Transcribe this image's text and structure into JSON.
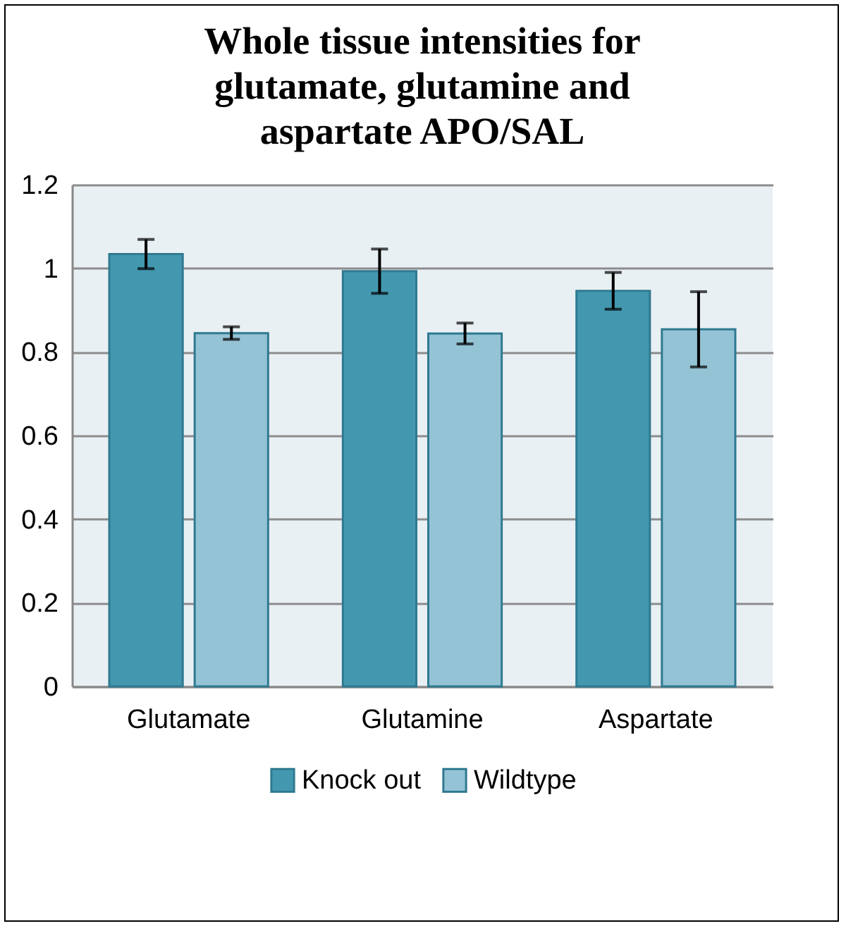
{
  "chart_data": {
    "type": "bar",
    "title": "Whole tissue intensities for glutamate, glutamine and aspartate APO/SAL",
    "categories": [
      "Glutamate",
      "Glutamine",
      "Aspartate"
    ],
    "series": [
      {
        "name": "Knock out",
        "color": "#4398b0",
        "values": [
          1.034,
          0.993,
          0.946
        ],
        "errors": [
          0.035,
          0.053,
          0.044
        ]
      },
      {
        "name": "Wildtype",
        "color": "#94c3d5",
        "values": [
          0.845,
          0.844,
          0.854
        ],
        "errors": [
          0.015,
          0.025,
          0.09
        ]
      }
    ],
    "ylim": [
      0,
      1.2
    ],
    "yticks": [
      0,
      0.2,
      0.4,
      0.6,
      0.8,
      1,
      1.2
    ],
    "grid": "y",
    "legend": "bottom"
  }
}
